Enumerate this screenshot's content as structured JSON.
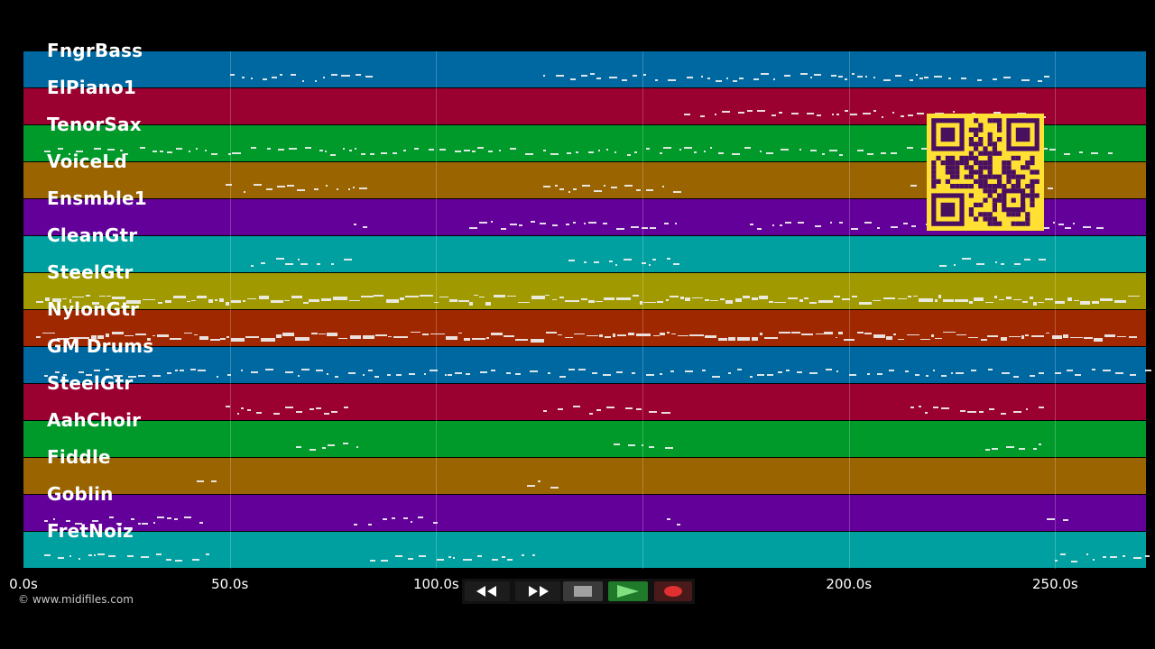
{
  "tracks": [
    {
      "name": "FngrBass",
      "color": "#0068a0"
    },
    {
      "name": "ElPiano1",
      "color": "#9a0030"
    },
    {
      "name": "TenorSax",
      "color": "#009a2a"
    },
    {
      "name": "VoiceLd",
      "color": "#9a6400"
    },
    {
      "name": "Ensmble1",
      "color": "#64009a"
    },
    {
      "name": "CleanGtr",
      "color": "#00a0a0"
    },
    {
      "name": "SteelGtr",
      "color": "#a09a00"
    },
    {
      "name": "NylonGtr",
      "color": "#a02800"
    },
    {
      "name": "GM Drums",
      "color": "#0068a0"
    },
    {
      "name": "SteelGtr",
      "color": "#9a0030"
    },
    {
      "name": "AahChoir",
      "color": "#009a2a"
    },
    {
      "name": "Fiddle",
      "color": "#9a6400"
    },
    {
      "name": "Goblin",
      "color": "#64009a"
    },
    {
      "name": "FretNoiz",
      "color": "#00a0a0"
    }
  ],
  "time_axis": {
    "start": 0.0,
    "end": 272.0,
    "ticks": [
      "0.0s",
      "50.0s",
      "100.0s",
      "150.0s",
      "200.0s",
      "250.0s"
    ],
    "tick_values": [
      0,
      50,
      100,
      150,
      200,
      250
    ]
  },
  "transport": {
    "rewind_icon": "rewind-icon",
    "fast_forward_icon": "fast-forward-icon",
    "stop_icon": "stop-icon",
    "play_icon": "play-icon",
    "record_icon": "record-icon"
  },
  "copyright": "© www.midifiles.com",
  "qr_code": "qr-code-icon"
}
